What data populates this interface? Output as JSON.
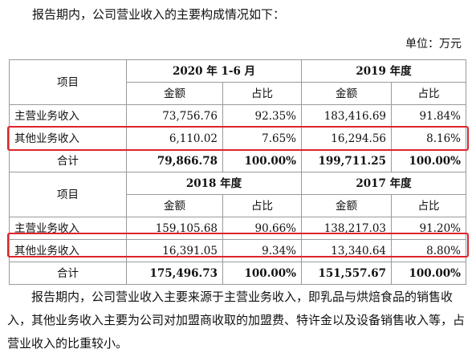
{
  "intro": "报告期内，公司营业收入的主要构成情况如下：",
  "unit": "单位：万元",
  "labels": {
    "item": "项目",
    "amount": "金额",
    "ratio": "占比"
  },
  "block1": {
    "period_a": "2020 年 1-6 月",
    "period_b": "2019 年度",
    "rows": [
      {
        "name": "主营业务收入",
        "a_amount": "73,756.76",
        "a_ratio": "92.35%",
        "b_amount": "183,416.69",
        "b_ratio": "91.84%"
      },
      {
        "name": "其他业务收入",
        "a_amount": "6,110.02",
        "a_ratio": "7.65%",
        "b_amount": "16,294.56",
        "b_ratio": "8.16%"
      },
      {
        "name": "合计",
        "a_amount": "79,866.78",
        "a_ratio": "100.00%",
        "b_amount": "199,711.25",
        "b_ratio": "100.00%"
      }
    ]
  },
  "block2": {
    "period_a": "2018 年度",
    "period_b": "2017 年度",
    "rows": [
      {
        "name": "主营业务收入",
        "a_amount": "159,105.68",
        "a_ratio": "90.66%",
        "b_amount": "138,217.03",
        "b_ratio": "91.20%"
      },
      {
        "name": "其他业务收入",
        "a_amount": "16,391.05",
        "a_ratio": "9.34%",
        "b_amount": "13,340.64",
        "b_ratio": "8.80%"
      },
      {
        "name": "合计",
        "a_amount": "175,496.73",
        "a_ratio": "100.00%",
        "b_amount": "151,557.67",
        "b_ratio": "100.00%"
      }
    ]
  },
  "highlight_color": "#e0232a",
  "paragraph": "报告期内，公司营业收入主要来源于主营业务收入，即乳品与烘焙食品的销售收入，其他业务收入主要为公司对加盟商收取的加盟费、特许金以及设备销售收入等，占营业收入的比重较小。"
}
